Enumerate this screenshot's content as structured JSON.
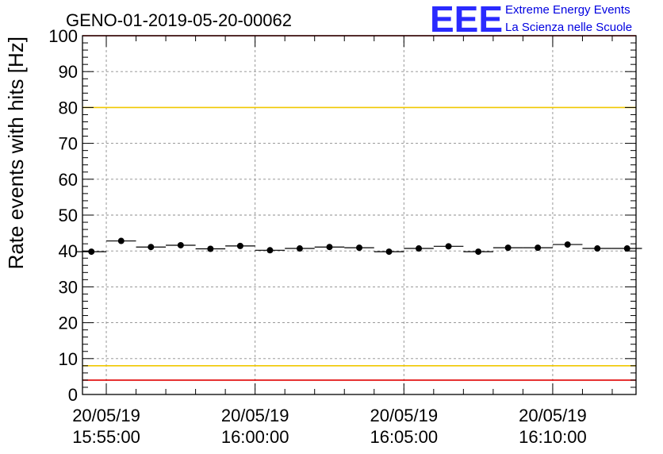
{
  "chart_data": {
    "type": "scatter",
    "title": "GENO-01-2019-05-20-00062",
    "ylabel": "Rate events with hits [Hz]",
    "xlabel": "",
    "ylim": [
      0,
      100
    ],
    "xlim_minutes": [
      -0.8,
      17.8
    ],
    "grid": true,
    "y_ticks": [
      0,
      10,
      20,
      30,
      40,
      50,
      60,
      70,
      80,
      90,
      100
    ],
    "x_ticks": [
      {
        "minute": 0,
        "date": "20/05/19",
        "time": "15:55:00"
      },
      {
        "minute": 5,
        "date": "20/05/19",
        "time": "16:00:00"
      },
      {
        "minute": 10,
        "date": "20/05/19",
        "time": "16:05:00"
      },
      {
        "minute": 15,
        "date": "20/05/19",
        "time": "16:10:00"
      }
    ],
    "bin_width_minutes": 1,
    "x_minutes": [
      -0.5,
      0.5,
      1.5,
      2.5,
      3.5,
      4.5,
      5.5,
      6.5,
      7.5,
      8.5,
      9.5,
      10.5,
      11.5,
      12.5,
      13.5,
      14.5,
      15.5,
      16.5,
      17.5
    ],
    "values": [
      39.8,
      42.8,
      41.1,
      41.6,
      40.6,
      41.4,
      40.2,
      40.7,
      41.1,
      40.9,
      39.8,
      40.7,
      41.3,
      39.8,
      40.9,
      40.9,
      41.8,
      40.7,
      40.7
    ],
    "reference_lines": [
      {
        "value": 100,
        "color": "#e00000"
      },
      {
        "value": 80,
        "color": "#f0c800"
      },
      {
        "value": 8,
        "color": "#f0c800"
      },
      {
        "value": 4,
        "color": "#e00000"
      }
    ]
  },
  "logo": {
    "text": "EEE",
    "line1": "Extreme Energy Events",
    "line2": "La Scienza nelle Scuole",
    "color": "#2a2aff"
  }
}
